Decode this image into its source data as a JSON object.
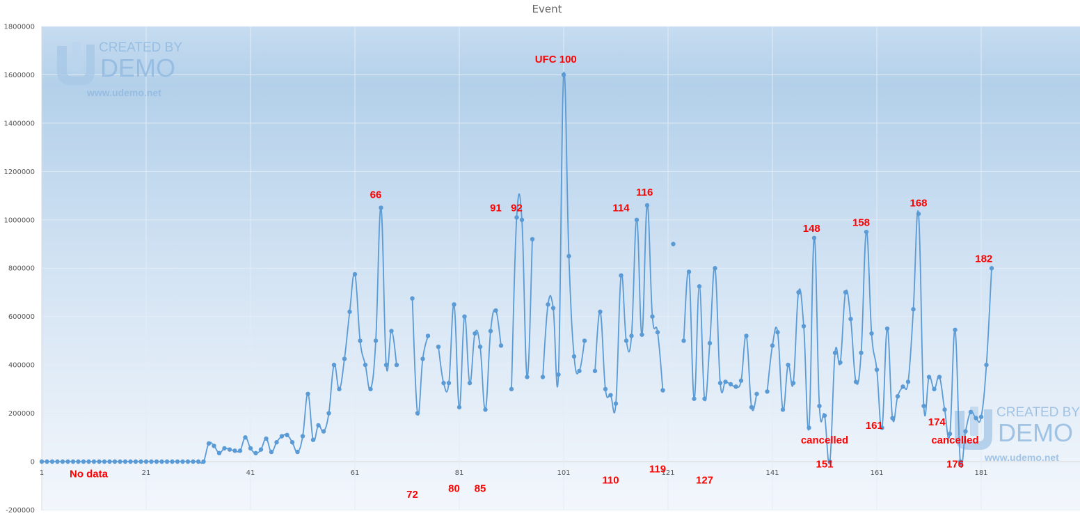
{
  "chart_data": {
    "type": "line",
    "title": "Event",
    "xlabel": "",
    "ylabel": "",
    "ylim": [
      -200000,
      1800000
    ],
    "xlim": [
      1,
      200
    ],
    "y_ticks": [
      -200000,
      0,
      200000,
      400000,
      600000,
      800000,
      1000000,
      1200000,
      1400000,
      1600000,
      1800000
    ],
    "y_tick_labels": [
      "-200000",
      "0",
      "200000",
      "400000",
      "600000",
      "800000",
      "1000000",
      "1200000",
      "1400000",
      "1600000",
      "1800000"
    ],
    "x_ticks": [
      1,
      21,
      41,
      61,
      81,
      101,
      121,
      141,
      161,
      181
    ],
    "x_tick_labels": [
      "1",
      "21",
      "41",
      "61",
      "81",
      "101",
      "121",
      "141",
      "161",
      "181"
    ],
    "grid": true,
    "legend": "none",
    "colors": {
      "series": "#5b9bd5",
      "annotation": "#ff0000",
      "plot_top": "#b7d3ec",
      "plot_bottom": "#f3f7fc"
    },
    "series": [
      {
        "values": [
          0,
          0,
          0,
          0,
          0,
          0,
          0,
          0,
          0,
          0,
          0,
          0,
          0,
          0,
          0,
          0,
          0,
          0,
          0,
          0,
          0,
          0,
          0,
          0,
          0,
          0,
          0,
          0,
          0,
          0,
          0,
          0,
          75000,
          65000,
          35000,
          55000,
          50000,
          45000,
          45000,
          100000,
          55000,
          35000,
          50000,
          95000,
          40000,
          80000,
          105000,
          110000,
          80000,
          40000,
          105000,
          280000,
          90000,
          150000,
          125000,
          200000,
          400000,
          300000,
          425000,
          620000,
          775000,
          500000,
          400000,
          300000,
          500000,
          1050000,
          400000,
          540000,
          400000,
          null,
          null,
          675000,
          200000,
          425000,
          520000,
          null,
          475000,
          325000,
          325000,
          650000,
          225000,
          600000,
          325000,
          530000,
          475000,
          215000,
          540000,
          625000,
          480000,
          null,
          300000,
          1010000,
          1000000,
          350000,
          920000,
          null,
          350000,
          650000,
          635000,
          360000,
          1600000,
          850000,
          435000,
          375000,
          500000,
          null,
          375000,
          620000,
          300000,
          275000,
          240000,
          770000,
          500000,
          520000,
          1000000,
          525000,
          1060000,
          600000,
          535000,
          295000,
          null,
          900000,
          null,
          500000,
          785000,
          260000,
          725000,
          260000,
          490000,
          800000,
          325000,
          330000,
          320000,
          310000,
          335000,
          520000,
          225000,
          280000,
          null,
          290000,
          480000,
          535000,
          215000,
          400000,
          325000,
          700000,
          560000,
          140000,
          925000,
          230000,
          190000,
          0,
          450000,
          410000,
          700000,
          590000,
          330000,
          450000,
          950000,
          530000,
          380000,
          140000,
          550000,
          180000,
          270000,
          310000,
          330000,
          630000,
          1025000,
          230000,
          350000,
          300000,
          350000,
          215000,
          115000,
          545000,
          0,
          125000,
          205000,
          180000,
          185000,
          400000,
          800000
        ]
      }
    ],
    "annotations": [
      {
        "text": "No data",
        "x": 10,
        "y": -65000
      },
      {
        "text": "66",
        "x": 65,
        "y": 1090000
      },
      {
        "text": "72",
        "x": 72,
        "y": -150000
      },
      {
        "text": "80",
        "x": 80,
        "y": -125000
      },
      {
        "text": "85",
        "x": 85,
        "y": -125000
      },
      {
        "text": "91",
        "x": 88,
        "y": 1035000
      },
      {
        "text": "92",
        "x": 92,
        "y": 1035000
      },
      {
        "text": "UFC 100",
        "x": 99.5,
        "y": 1650000
      },
      {
        "text": "110",
        "x": 110,
        "y": -90000
      },
      {
        "text": "114",
        "x": 112,
        "y": 1035000
      },
      {
        "text": "116",
        "x": 116.5,
        "y": 1100000
      },
      {
        "text": "119",
        "x": 119,
        "y": -45000
      },
      {
        "text": "127",
        "x": 128,
        "y": -90000
      },
      {
        "text": "148",
        "x": 148.5,
        "y": 950000
      },
      {
        "text": "151",
        "x": 151,
        "y": -25000
      },
      {
        "text": "cancelled",
        "x": 151,
        "y": 75000
      },
      {
        "text": "158",
        "x": 158,
        "y": 975000
      },
      {
        "text": "161",
        "x": 160.5,
        "y": 135000
      },
      {
        "text": "168",
        "x": 169,
        "y": 1055000
      },
      {
        "text": "174",
        "x": 172.5,
        "y": 150000
      },
      {
        "text": "176",
        "x": 176,
        "y": -25000
      },
      {
        "text": "cancelled",
        "x": 176,
        "y": 75000
      },
      {
        "text": "182",
        "x": 181.5,
        "y": 825000
      }
    ]
  },
  "watermarks": [
    {
      "line1": "CREATED BY",
      "line2": "DEMO",
      "url": "www.udemo.net",
      "position": "top-left"
    },
    {
      "line1": "CREATED BY",
      "line2": "DEMO",
      "url": "www.udemo.net",
      "position": "bottom-right"
    }
  ]
}
